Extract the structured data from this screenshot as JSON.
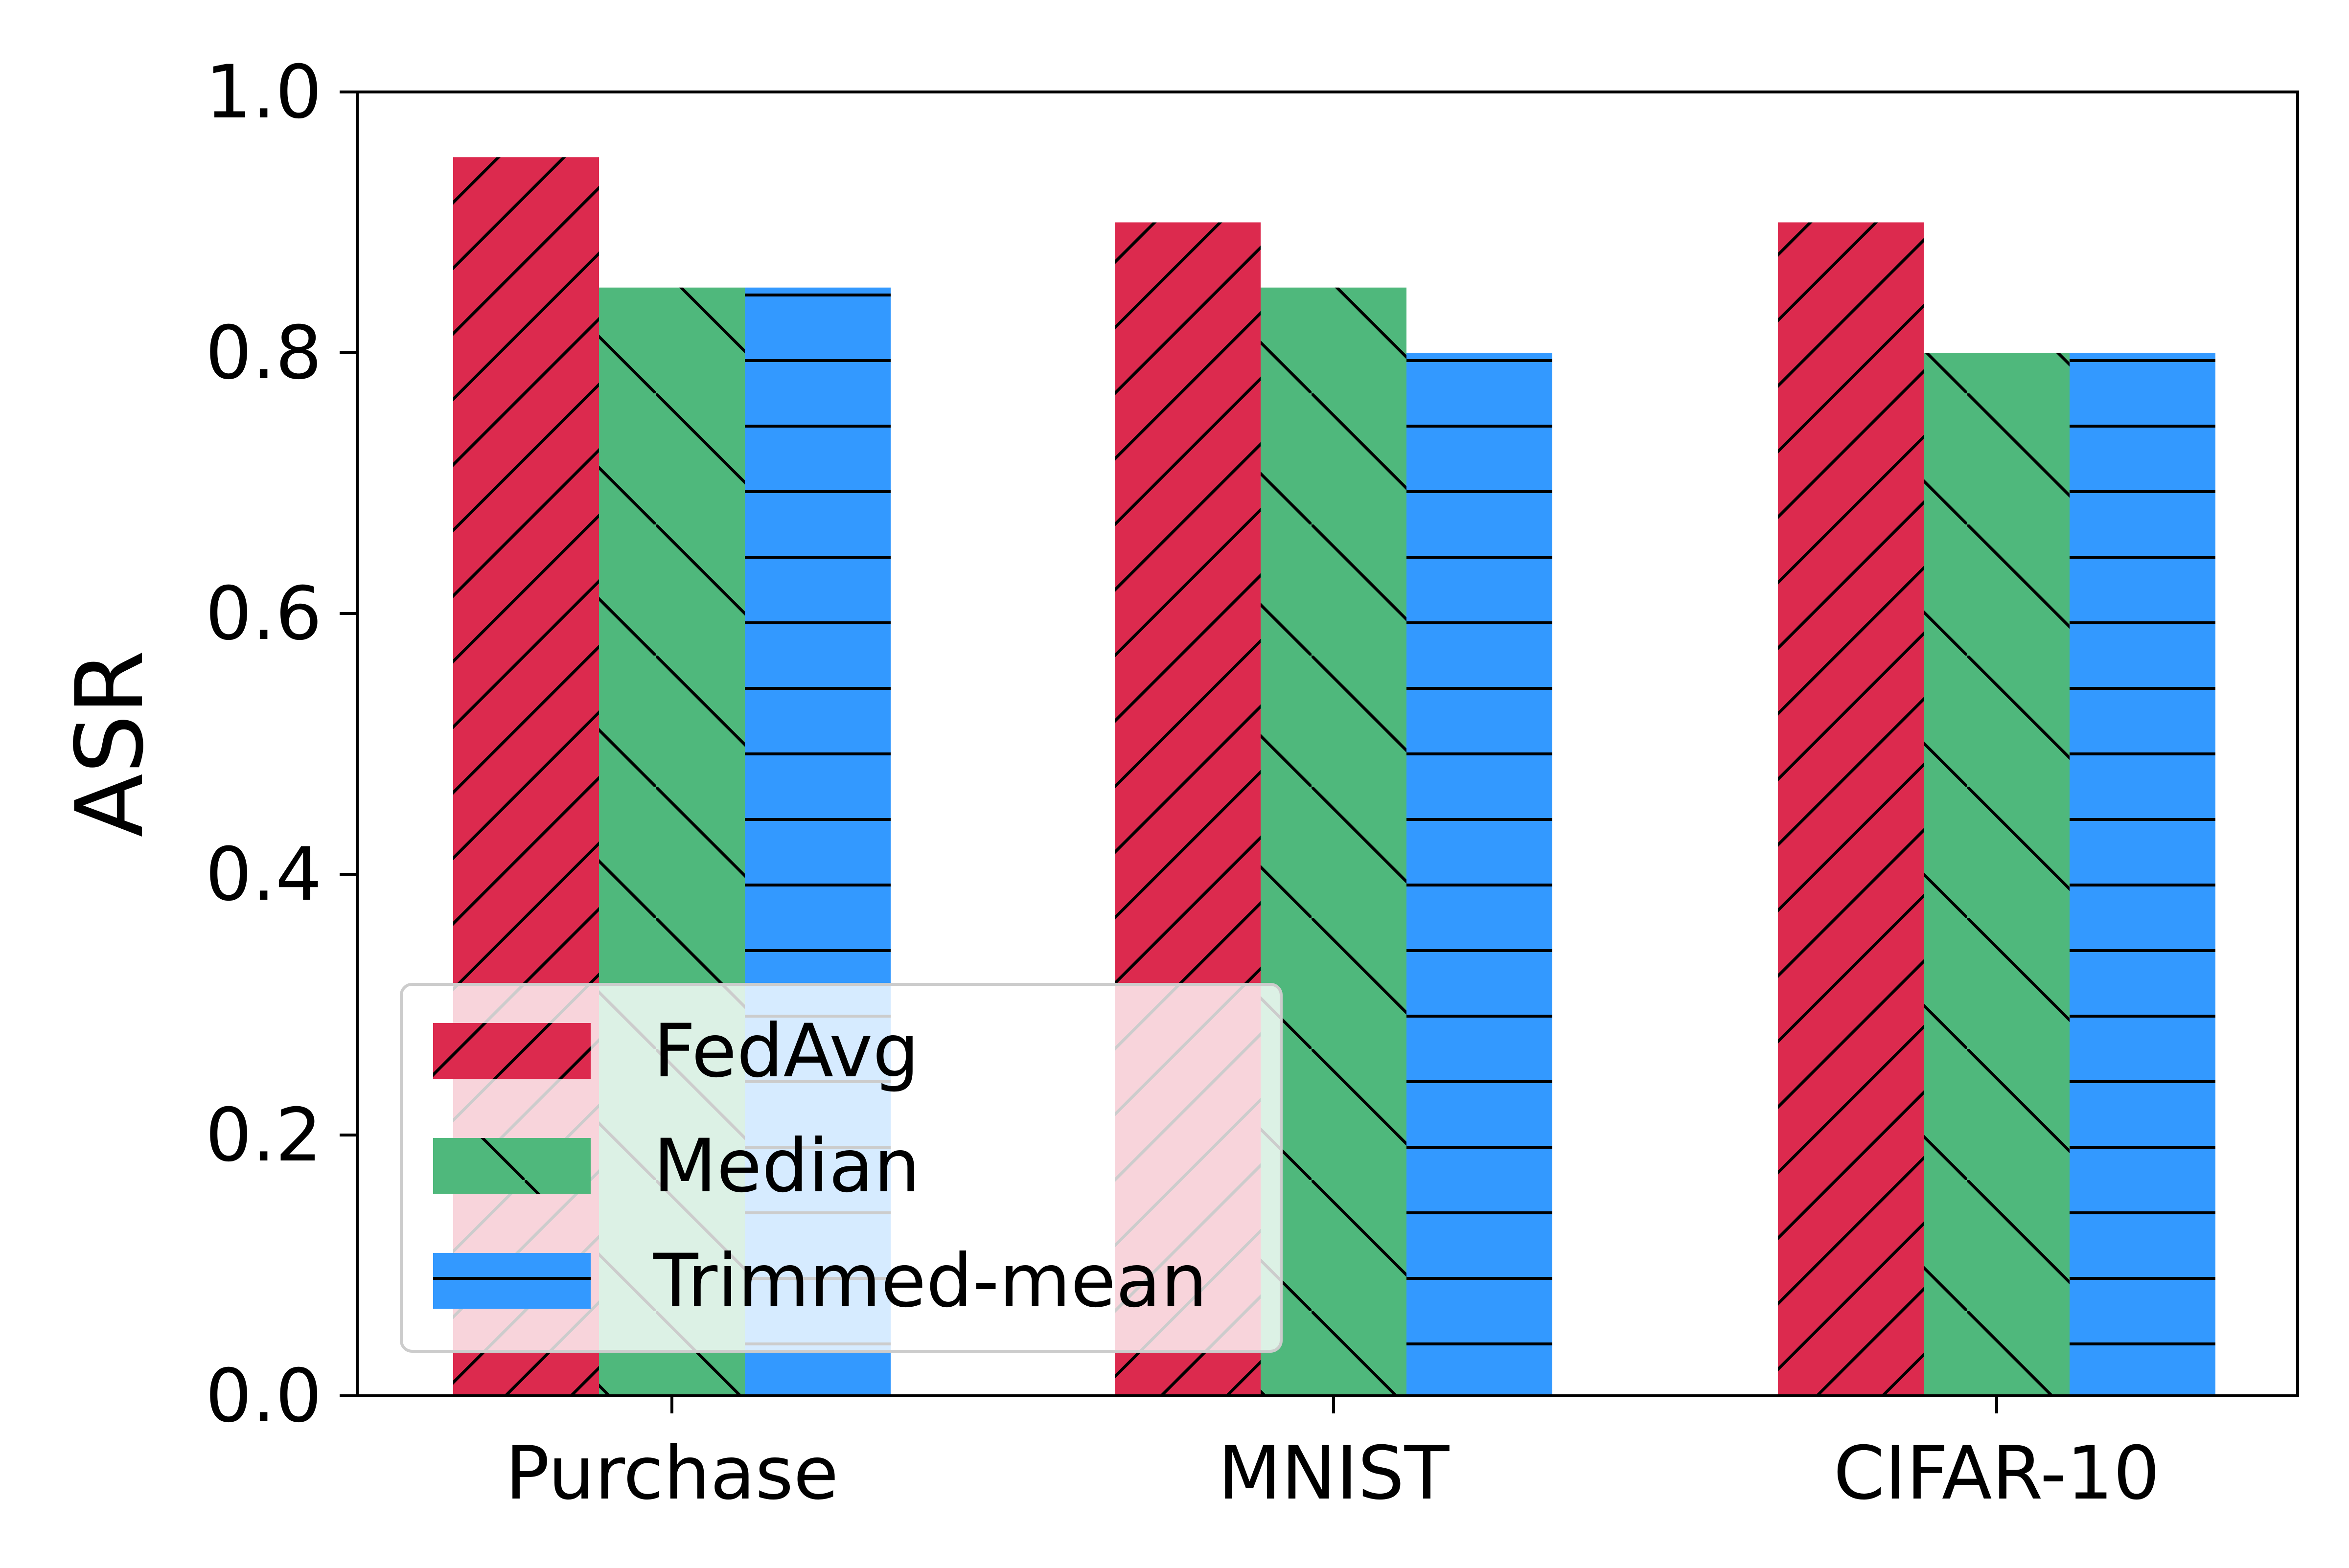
{
  "chart_data": {
    "type": "bar",
    "title": "",
    "xlabel": "",
    "ylabel": "ASR",
    "ylim": [
      0,
      1.0
    ],
    "yticks": [
      "0.0",
      "0.2",
      "0.4",
      "0.6",
      "0.8",
      "1.0"
    ],
    "categories": [
      "Purchase",
      "MNIST",
      "CIFAR-10"
    ],
    "series": [
      {
        "name": "FedAvg",
        "values": [
          0.95,
          0.9,
          0.9
        ],
        "color": "#DC2A4E",
        "hatch": "forward-diagonal"
      },
      {
        "name": "Median",
        "values": [
          0.85,
          0.85,
          0.8
        ],
        "color": "#4FB87C",
        "hatch": "back-diagonal"
      },
      {
        "name": "Trimmed-mean",
        "values": [
          0.85,
          0.8,
          0.8
        ],
        "color": "#3399FF",
        "hatch": "horizontal"
      }
    ],
    "legend_position": "lower-left",
    "grid": false
  }
}
